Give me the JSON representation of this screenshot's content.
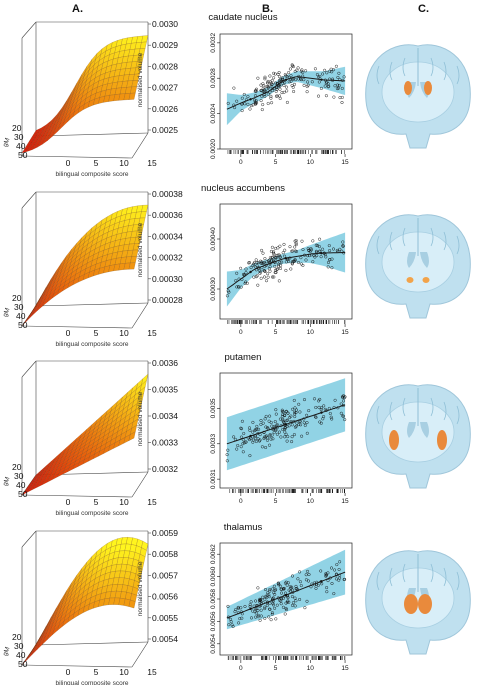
{
  "columns": {
    "a": "A.",
    "b": "B.",
    "c": "C."
  },
  "colors": {
    "ci_band": "#7ecbe0",
    "brain_tissue": "#bfe0ef",
    "brain_light": "#d8eef8",
    "region": "#e98a3c"
  },
  "panels": [
    {
      "title": "caudate nucleus",
      "surface": {
        "zticks": [
          "0.0030",
          "0.0029",
          "0.0028",
          "0.0027",
          "0.0026",
          "0.0025"
        ],
        "xticks": [
          "0",
          "5",
          "10",
          "15"
        ],
        "yticks": [
          "20",
          "30",
          "40",
          "50"
        ],
        "xlabel": "bilingual composite score",
        "zlabel": "normalised volume",
        "ylabel": "gM"
      },
      "scatter": {
        "yticks": [
          "0.0032",
          "0.0028",
          "0.0024",
          "0.0020"
        ],
        "xticks": [
          "0",
          "5",
          "10",
          "15"
        ]
      }
    },
    {
      "title": "nucleus accumbens",
      "surface": {
        "zticks": [
          "0.00038",
          "0.00036",
          "0.00034",
          "0.00032",
          "0.00030",
          "0.00028"
        ],
        "xticks": [
          "0",
          "5",
          "10",
          "15"
        ],
        "yticks": [
          "20",
          "30",
          "40",
          "50"
        ],
        "xlabel": "bilingual composite score",
        "zlabel": "normalised volume",
        "ylabel": "gM"
      },
      "scatter": {
        "yticks": [
          "0.00040",
          "0.00030"
        ],
        "xticks": [
          "0",
          "5",
          "10",
          "15"
        ]
      }
    },
    {
      "title": "putamen",
      "surface": {
        "zticks": [
          "0.0036",
          "0.0035",
          "0.0034",
          "0.0033",
          "0.0032"
        ],
        "xticks": [
          "0",
          "5",
          "10",
          "15"
        ],
        "yticks": [
          "20",
          "30",
          "40",
          "50"
        ],
        "xlabel": "bilingual composite score",
        "zlabel": "normalised volume",
        "ylabel": "gM"
      },
      "scatter": {
        "yticks": [
          "0.0035",
          "0.0033",
          "0.0031"
        ],
        "xticks": [
          "0",
          "5",
          "10",
          "15"
        ]
      }
    },
    {
      "title": "thalamus",
      "surface": {
        "zticks": [
          "0.0059",
          "0.0058",
          "0.0057",
          "0.0056",
          "0.0055",
          "0.0054"
        ],
        "xticks": [
          "0",
          "5",
          "10",
          "15"
        ],
        "yticks": [
          "20",
          "30",
          "40",
          "50"
        ],
        "xlabel": "bilingual composite score",
        "zlabel": "normalised volume",
        "ylabel": "gM"
      },
      "scatter": {
        "yticks": [
          "0.0062",
          "0.0060",
          "0.0058",
          "0.0056",
          "0.0054"
        ],
        "xticks": [
          "0",
          "5",
          "10",
          "15"
        ]
      }
    }
  ],
  "chart_data": [
    {
      "type": "scatter",
      "title": "caudate nucleus",
      "xlim": [
        -3,
        16
      ],
      "ylim": [
        0.002,
        0.0033
      ],
      "fit": {
        "x": [
          -2,
          0,
          2,
          4,
          6,
          8,
          10,
          12,
          15
        ],
        "y": [
          0.00245,
          0.00252,
          0.00258,
          0.00265,
          0.00277,
          0.00282,
          0.0028,
          0.00278,
          0.00277
        ]
      },
      "band_halfwidth": [
        0.00018,
        9e-05,
        6e-05,
        5e-05,
        5e-05,
        6e-05,
        8e-05,
        0.0001,
        0.00016
      ]
    },
    {
      "type": "scatter",
      "title": "nucleus accumbens",
      "xlim": [
        -3,
        16
      ],
      "ylim": [
        0.00024,
        0.00047
      ],
      "fit": {
        "x": [
          -2,
          0,
          2,
          4,
          6,
          8,
          10,
          12,
          15
        ],
        "y": [
          0.0003,
          0.00032,
          0.00034,
          0.00035,
          0.00036,
          0.000365,
          0.00037,
          0.000372,
          0.000373
        ]
      },
      "band_halfwidth": [
        3.5e-05,
        1.8e-05,
        1.2e-05,
        1e-05,
        1e-05,
        1.2e-05,
        1.8e-05,
        2.6e-05,
        4e-05
      ]
    },
    {
      "type": "scatter",
      "title": "putamen",
      "xlim": [
        -3,
        16
      ],
      "ylim": [
        0.00305,
        0.0037
      ],
      "fit": {
        "x": [
          -2,
          15
        ],
        "y": [
          0.0033,
          0.00352
        ]
      },
      "band_halfwidth": [
        0.00015,
        0.00015
      ]
    },
    {
      "type": "scatter",
      "title": "thalamus",
      "xlim": [
        -3,
        16
      ],
      "ylim": [
        0.0053,
        0.0063
      ],
      "fit": {
        "x": [
          -2,
          15
        ],
        "y": [
          0.00563,
          0.00604
        ]
      },
      "band_halfwidth": [
        0.0001,
        0.0002
      ]
    }
  ]
}
